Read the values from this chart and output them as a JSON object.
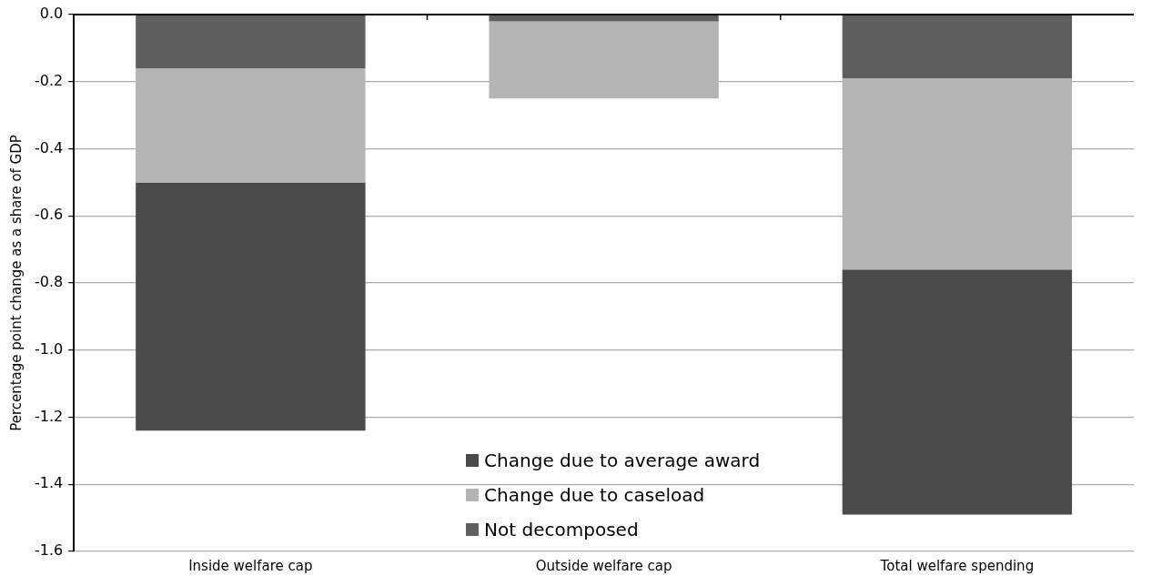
{
  "chart_data": {
    "type": "bar",
    "ylabel": "Percentage point change as a share of GDP",
    "categories": [
      "Inside welfare cap",
      "Outside welfare cap",
      "Total welfare spending"
    ],
    "stacked": true,
    "series": [
      {
        "name": "Not decomposed",
        "color": "#5f5f5f",
        "values": [
          -0.16,
          -0.02,
          -0.19
        ]
      },
      {
        "name": "Change due to caseload",
        "color": "#b4b4b4",
        "values": [
          -0.34,
          -0.23,
          -0.57
        ]
      },
      {
        "name": "Change due to average award",
        "color": "#4a4a4a",
        "values": [
          -0.74,
          0,
          -0.73
        ]
      }
    ],
    "ylim": [
      -1.6,
      0
    ],
    "yticks": [
      {
        "value": -1.6,
        "label": "-1.6"
      },
      {
        "value": -1.4,
        "label": "-1.4"
      },
      {
        "value": -1.2,
        "label": "-1.2"
      },
      {
        "value": -1,
        "label": "-1.0"
      },
      {
        "value": -0.8,
        "label": "-0.8"
      },
      {
        "value": -0.6,
        "label": "-0.6"
      },
      {
        "value": -0.4,
        "label": "-0.4"
      },
      {
        "value": -0.2,
        "label": "-0.2"
      },
      {
        "value": 0,
        "label": "0.0"
      }
    ],
    "grid": "y",
    "legend": "bottom"
  }
}
